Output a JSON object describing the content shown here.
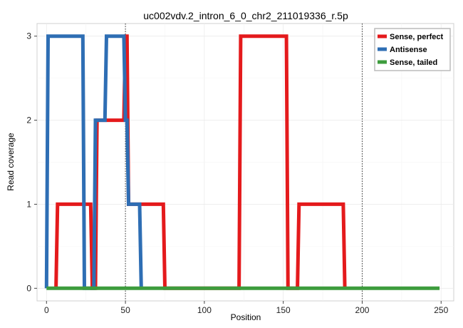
{
  "chart_data": {
    "type": "line",
    "title": "uc002vdv.2_intron_6_0_chr2_211019336_r.5p",
    "xlabel": "Position",
    "ylabel": "Read coverage",
    "xlim": [
      -6,
      258
    ],
    "ylim": [
      -0.15,
      3.15
    ],
    "xticks": [
      0,
      50,
      100,
      150,
      200,
      250
    ],
    "yticks": [
      0,
      1,
      2,
      3
    ],
    "grid": true,
    "legend_position": "top-right",
    "vlines": [
      50,
      200
    ],
    "series": [
      {
        "name": "Sense, perfect",
        "color": "#e41a1c",
        "x": [
          6,
          7,
          28,
          29,
          31,
          32,
          49,
          50,
          51,
          52,
          74,
          75,
          122,
          123,
          152,
          153,
          159,
          160,
          188,
          189
        ],
        "y": [
          0,
          1,
          1,
          0,
          0,
          2,
          2,
          3,
          3,
          1,
          1,
          0,
          0,
          3,
          3,
          0,
          0,
          1,
          1,
          0
        ]
      },
      {
        "name": "Antisense",
        "color": "#2e6eb4",
        "x": [
          0,
          1,
          23,
          24,
          30,
          31,
          37,
          38,
          49,
          50,
          51,
          52,
          59,
          60
        ],
        "y": [
          0,
          3,
          3,
          0,
          0,
          2,
          2,
          3,
          3,
          2,
          2,
          1,
          1,
          0
        ]
      },
      {
        "name": "Sense, tailed",
        "color": "#3d9c3d",
        "x": [
          0,
          249
        ],
        "y": [
          0,
          0
        ]
      }
    ]
  }
}
